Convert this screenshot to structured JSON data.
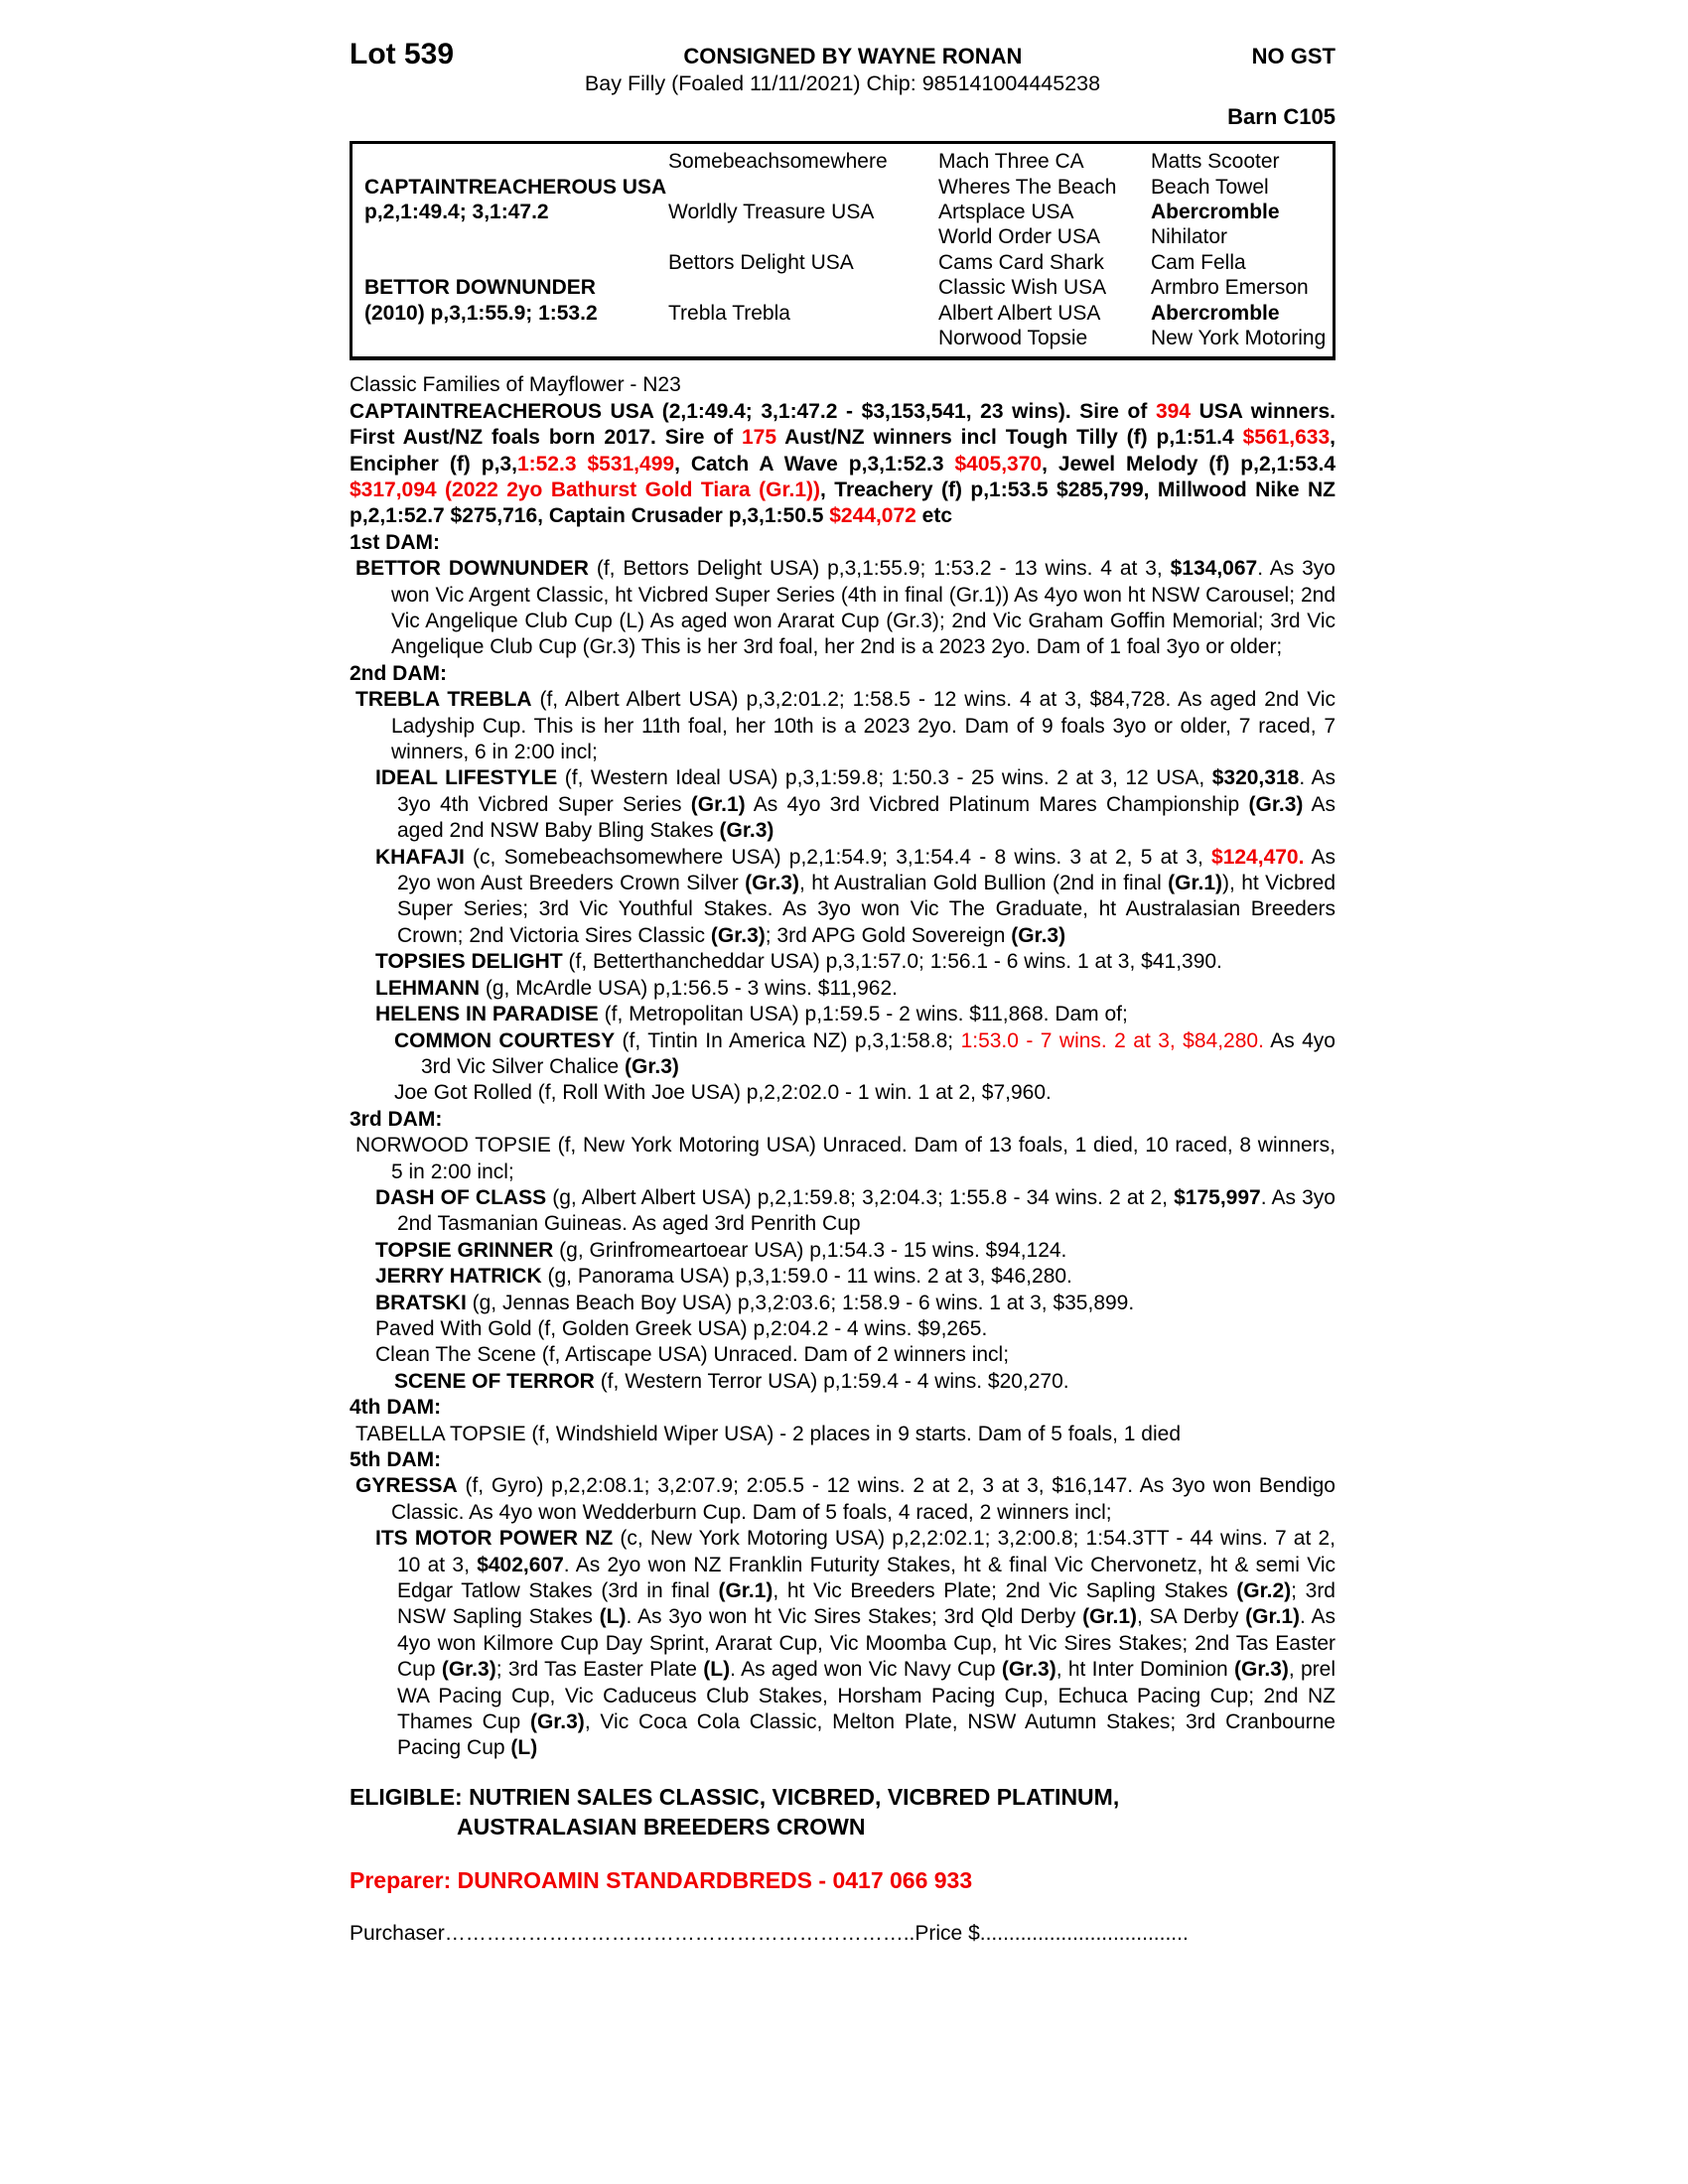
{
  "colors": {
    "highlight_red": "#f10000",
    "text": "#000000",
    "background": "#ffffff"
  },
  "header": {
    "lot": "Lot 539",
    "consigned": "CONSIGNED BY WAYNE RONAN",
    "no_gst": "NO GST",
    "description": "Bay Filly (Foaled 11/11/2021) Chip: 985141004445238",
    "barn": "Barn C105"
  },
  "pedigree": {
    "sire": {
      "name": "CAPTAINTREACHEROUS USA",
      "record": "p,2,1:49.4; 3,1:47.2"
    },
    "dam": {
      "name": "BETTOR DOWNUNDER",
      "record": "(2010) p,3,1:55.9; 1:53.2"
    },
    "gen2": [
      "Somebeachsomewhere",
      "Worldly Treasure USA",
      "Bettors Delight USA",
      "Trebla Trebla"
    ],
    "gen3": [
      {
        "g3": "Mach Three CA",
        "g4": "Matts Scooter"
      },
      {
        "g3": "Wheres The Beach",
        "g4": "Beach Towel"
      },
      {
        "g3": "Artsplace USA",
        "g4": "Abercromble"
      },
      {
        "g3": "World Order USA",
        "g4": "Nihilator"
      },
      {
        "g3": "Cams Card Shark",
        "g4": "Cam Fella"
      },
      {
        "g3": "Classic Wish USA",
        "g4": "Armbro Emerson"
      },
      {
        "g3": "Albert Albert USA",
        "g4": "Abercromble"
      },
      {
        "g3": "Norwood Topsie",
        "g4": "New York Motoring"
      }
    ]
  },
  "blocks": [
    {
      "name": "family-line",
      "style": "fam",
      "seg": [
        {
          "t": "Classic Families of Mayflower - N23"
        }
      ]
    },
    {
      "name": "sire-summary",
      "style": "sire",
      "seg": [
        {
          "t": "CAPTAINTREACHEROUS USA (2,1:49.4; 3,1:47.2 - $3,153,541, 23 wins). Sire of "
        },
        {
          "t": "394",
          "r": 1
        },
        {
          "t": " USA winners. First Aust/NZ foals born 2017. Sire of "
        },
        {
          "t": "175",
          "r": 1
        },
        {
          "t": " Aust/NZ winners incl Tough Tilly (f) p,1:51.4 "
        },
        {
          "t": "$561,633",
          "r": 1
        },
        {
          "t": ", Encipher (f) p,3,"
        },
        {
          "t": "1:52.3 $531,499",
          "r": 1
        },
        {
          "t": ", Catch A Wave p,3,1:52.3 "
        },
        {
          "t": "$405,370",
          "r": 1
        },
        {
          "t": ", Jewel Melody (f) p,2,1:53.4 "
        },
        {
          "t": "$317,094 (2022 2yo Bathurst Gold Tiara (Gr.1))",
          "r": 1
        },
        {
          "t": ", Treachery (f) p,1:53.5 $285,799, Millwood Nike NZ p,2,1:52.7 $275,716, Captain Crusader p,3,1:50.5 "
        },
        {
          "t": "$244,072",
          "r": 1
        },
        {
          "t": " etc"
        }
      ]
    },
    {
      "name": "dam1-heading",
      "style": "h",
      "seg": [
        {
          "t": "1st DAM:",
          "b": 1
        }
      ]
    },
    {
      "name": "entry-bettor-downunder",
      "style": "l1",
      "seg": [
        {
          "t": "BETTOR DOWNUNDER",
          "b": 1
        },
        {
          "t": " (f, Bettors Delight USA) p,3,1:55.9; 1:53.2 - 13 wins. 4 at 3, "
        },
        {
          "t": "$134,067",
          "b": 1
        },
        {
          "t": ". As 3yo won Vic Argent Classic, ht Vicbred Super Series (4th in final (Gr.1)) As 4yo won ht NSW Carousel; 2nd Vic Angelique Club Cup (L) As aged won Ararat Cup (Gr.3); 2nd Vic Graham Goffin Memorial; 3rd Vic Angelique Club Cup (Gr.3) This is her 3rd foal, her 2nd is a 2023 2yo. Dam of 1 foal 3yo or older;"
        }
      ]
    },
    {
      "name": "dam2-heading",
      "style": "h",
      "seg": [
        {
          "t": "2nd DAM:",
          "b": 1
        }
      ]
    },
    {
      "name": "entry-trebla-trebla",
      "style": "l1",
      "seg": [
        {
          "t": "TREBLA TREBLA",
          "b": 1
        },
        {
          "t": " (f, Albert Albert USA) p,3,2:01.2; 1:58.5 - 12 wins. 4 at 3, $84,728. As aged 2nd Vic Ladyship Cup. This is her 11th foal, her 10th is a 2023 2yo. Dam of 9 foals 3yo or older, 7 raced, 7 winners, 6 in 2:00 incl;"
        }
      ]
    },
    {
      "name": "entry-ideal-lifestyle",
      "style": "l2",
      "seg": [
        {
          "t": "IDEAL LIFESTYLE",
          "b": 1
        },
        {
          "t": " (f, Western Ideal USA) p,3,1:59.8; 1:50.3 - 25 wins. 2 at 3, 12 USA, "
        },
        {
          "t": "$320,318",
          "b": 1
        },
        {
          "t": ". As 3yo 4th Vicbred Super Series "
        },
        {
          "t": "(Gr.1)",
          "b": 1
        },
        {
          "t": " As 4yo 3rd Vicbred Platinum Mares Championship "
        },
        {
          "t": "(Gr.3)",
          "b": 1
        },
        {
          "t": " As aged 2nd NSW Baby Bling Stakes "
        },
        {
          "t": "(Gr.3)",
          "b": 1
        }
      ]
    },
    {
      "name": "entry-khafaji",
      "style": "l2",
      "seg": [
        {
          "t": "KHAFAJI",
          "b": 1
        },
        {
          "t": " (c, Somebeachsomewhere USA) p,2,1:54.9; 3,1:54.4 - 8 wins. 3 at 2, 5 at 3, "
        },
        {
          "t": "$124,470.",
          "r": 1,
          "b": 1
        },
        {
          "t": " As 2yo won Aust Breeders Crown Silver "
        },
        {
          "t": "(Gr.3)",
          "b": 1
        },
        {
          "t": ", ht Australian Gold Bullion (2nd in final "
        },
        {
          "t": "(Gr.1)",
          "b": 1
        },
        {
          "t": "), ht Vicbred Super Series; 3rd Vic Youthful Stakes. As 3yo won Vic The Graduate, ht Australasian Breeders Crown; 2nd Victoria Sires Classic "
        },
        {
          "t": "(Gr.3)",
          "b": 1
        },
        {
          "t": "; 3rd APG Gold Sovereign "
        },
        {
          "t": "(Gr.3)",
          "b": 1
        }
      ]
    },
    {
      "name": "entry-topsies-delight",
      "style": "l2",
      "seg": [
        {
          "t": "TOPSIES DELIGHT",
          "b": 1
        },
        {
          "t": " (f, Betterthancheddar USA) p,3,1:57.0; 1:56.1 - 6 wins. 1 at 3, $41,390."
        }
      ]
    },
    {
      "name": "entry-lehmann",
      "style": "l2",
      "seg": [
        {
          "t": "LEHMANN",
          "b": 1
        },
        {
          "t": " (g, McArdle USA) p,1:56.5 - 3 wins. $11,962."
        }
      ]
    },
    {
      "name": "entry-helens-in-paradise",
      "style": "l2",
      "seg": [
        {
          "t": "HELENS IN PARADISE",
          "b": 1
        },
        {
          "t": " (f, Metropolitan USA) p,1:59.5 - 2 wins. $11,868. Dam of;"
        }
      ]
    },
    {
      "name": "entry-common-courtesy",
      "style": "l3",
      "seg": [
        {
          "t": "COMMON COURTESY",
          "b": 1
        },
        {
          "t": " (f, Tintin In America NZ) p,3,1:58.8; "
        },
        {
          "t": "1:53.0 - 7 wins. 2 at 3, $84,280.",
          "r": 1
        },
        {
          "t": " As 4yo 3rd Vic Silver Chalice "
        },
        {
          "t": "(Gr.3)",
          "b": 1
        }
      ]
    },
    {
      "name": "entry-joe-got-rolled",
      "style": "l3",
      "seg": [
        {
          "t": "Joe Got Rolled (f, Roll With Joe USA) p,2,2:02.0 - 1 win. 1 at 2, $7,960."
        }
      ]
    },
    {
      "name": "dam3-heading",
      "style": "h",
      "seg": [
        {
          "t": "3rd DAM:",
          "b": 1
        }
      ]
    },
    {
      "name": "entry-norwood-topsie",
      "style": "l1",
      "seg": [
        {
          "t": "NORWOOD TOPSIE (f, New York Motoring USA) Unraced. Dam of 13 foals, 1 died, 10 raced, 8 winners, 5 in 2:00 incl;"
        }
      ]
    },
    {
      "name": "entry-dash-of-class",
      "style": "l2",
      "seg": [
        {
          "t": "DASH OF CLASS",
          "b": 1
        },
        {
          "t": " (g, Albert Albert USA) p,2,1:59.8; 3,2:04.3; 1:55.8 - 34 wins. 2 at 2, "
        },
        {
          "t": "$175,997",
          "b": 1
        },
        {
          "t": ". As 3yo 2nd Tasmanian Guineas. As aged 3rd Penrith Cup"
        }
      ]
    },
    {
      "name": "entry-topsie-grinner",
      "style": "l2",
      "seg": [
        {
          "t": "TOPSIE GRINNER",
          "b": 1
        },
        {
          "t": " (g, Grinfromeartoear USA) p,1:54.3 - 15 wins. $94,124."
        }
      ]
    },
    {
      "name": "entry-jerry-hatrick",
      "style": "l2",
      "seg": [
        {
          "t": "JERRY HATRICK",
          "b": 1
        },
        {
          "t": " (g, Panorama USA) p,3,1:59.0 - 11 wins. 2 at 3, $46,280."
        }
      ]
    },
    {
      "name": "entry-bratski",
      "style": "l2",
      "seg": [
        {
          "t": "BRATSKI",
          "b": 1
        },
        {
          "t": " (g, Jennas Beach Boy USA) p,3,2:03.6; 1:58.9 - 6 wins. 1 at 3, $35,899."
        }
      ]
    },
    {
      "name": "entry-paved-with-gold",
      "style": "l2",
      "seg": [
        {
          "t": "Paved With Gold (f, Golden Greek USA) p,2:04.2 - 4 wins. $9,265."
        }
      ]
    },
    {
      "name": "entry-clean-the-scene",
      "style": "l2",
      "seg": [
        {
          "t": "Clean The Scene (f, Artiscape USA) Unraced. Dam of 2 winners incl;"
        }
      ]
    },
    {
      "name": "entry-scene-of-terror",
      "style": "l3",
      "seg": [
        {
          "t": "SCENE OF TERROR",
          "b": 1
        },
        {
          "t": " (f, Western Terror USA) p,1:59.4 - 4 wins. $20,270."
        }
      ]
    },
    {
      "name": "dam4-heading",
      "style": "h",
      "seg": [
        {
          "t": "4th DAM:",
          "b": 1
        }
      ]
    },
    {
      "name": "entry-tabella-topsie",
      "style": "l1",
      "seg": [
        {
          "t": "TABELLA TOPSIE (f, Windshield Wiper USA) - 2 places in 9 starts. Dam of 5 foals, 1 died"
        }
      ]
    },
    {
      "name": "dam5-heading",
      "style": "h",
      "seg": [
        {
          "t": "5th DAM:",
          "b": 1
        }
      ]
    },
    {
      "name": "entry-gyressa",
      "style": "l1",
      "seg": [
        {
          "t": "GYRESSA",
          "b": 1
        },
        {
          "t": " (f, Gyro) p,2,2:08.1; 3,2:07.9; 2:05.5 - 12 wins. 2 at 2, 3 at 3, $16,147. As 3yo won Bendigo Classic. As 4yo won Wedderburn Cup. Dam of 5 foals, 4 raced, 2 winners incl;"
        }
      ]
    },
    {
      "name": "entry-its-motor-power",
      "style": "l2",
      "seg": [
        {
          "t": "ITS MOTOR POWER NZ",
          "b": 1
        },
        {
          "t": " (c, New York Motoring USA) p,2,2:02.1; 3,2:00.8; 1:54.3TT - 44 wins. 7 at 2, 10 at 3, "
        },
        {
          "t": "$402,607",
          "b": 1
        },
        {
          "t": ". As 2yo won NZ Franklin Futurity Stakes, ht & final Vic Chervonetz, ht & semi Vic Edgar Tatlow Stakes (3rd in final "
        },
        {
          "t": "(Gr.1)",
          "b": 1
        },
        {
          "t": ", ht Vic Breeders Plate; 2nd Vic Sapling Stakes "
        },
        {
          "t": "(Gr.2)",
          "b": 1
        },
        {
          "t": "; 3rd NSW Sapling Stakes "
        },
        {
          "t": "(L)",
          "b": 1
        },
        {
          "t": ". As 3yo won ht Vic Sires Stakes; 3rd Qld Derby "
        },
        {
          "t": "(Gr.1)",
          "b": 1
        },
        {
          "t": ", SA Derby "
        },
        {
          "t": "(Gr.1)",
          "b": 1
        },
        {
          "t": ". As 4yo won Kilmore Cup Day Sprint, Ararat Cup, Vic Moomba Cup, ht Vic Sires Stakes; 2nd Tas Easter Cup "
        },
        {
          "t": "(Gr.3)",
          "b": 1
        },
        {
          "t": "; 3rd Tas Easter Plate "
        },
        {
          "t": "(L)",
          "b": 1
        },
        {
          "t": ". As aged won Vic Navy Cup "
        },
        {
          "t": "(Gr.3)",
          "b": 1
        },
        {
          "t": ", ht Inter Dominion "
        },
        {
          "t": "(Gr.3)",
          "b": 1
        },
        {
          "t": ", prel WA Pacing Cup, Vic Caduceus Club Stakes, Horsham Pacing Cup, Echuca Pacing Cup; 2nd NZ Thames Cup "
        },
        {
          "t": "(Gr.3)",
          "b": 1
        },
        {
          "t": ", Vic Coca Cola Classic, Melton Plate, NSW Autumn Stakes; 3rd Cranbourne Pacing Cup "
        },
        {
          "t": "(L)",
          "b": 1
        }
      ]
    }
  ],
  "footer": {
    "eligible_line1": "ELIGIBLE: NUTRIEN SALES CLASSIC, VICBRED, VICBRED PLATINUM,",
    "eligible_line2": "AUSTRALASIAN BREEDERS CROWN",
    "preparer": "Preparer: DUNROAMIN STANDARDBREDS - 0417 066 933",
    "purchaser_label": "Purchaser",
    "purchaser_leader": "…………………………………………………………..",
    "price_label": "Price $",
    "price_leader": "...................................."
  }
}
